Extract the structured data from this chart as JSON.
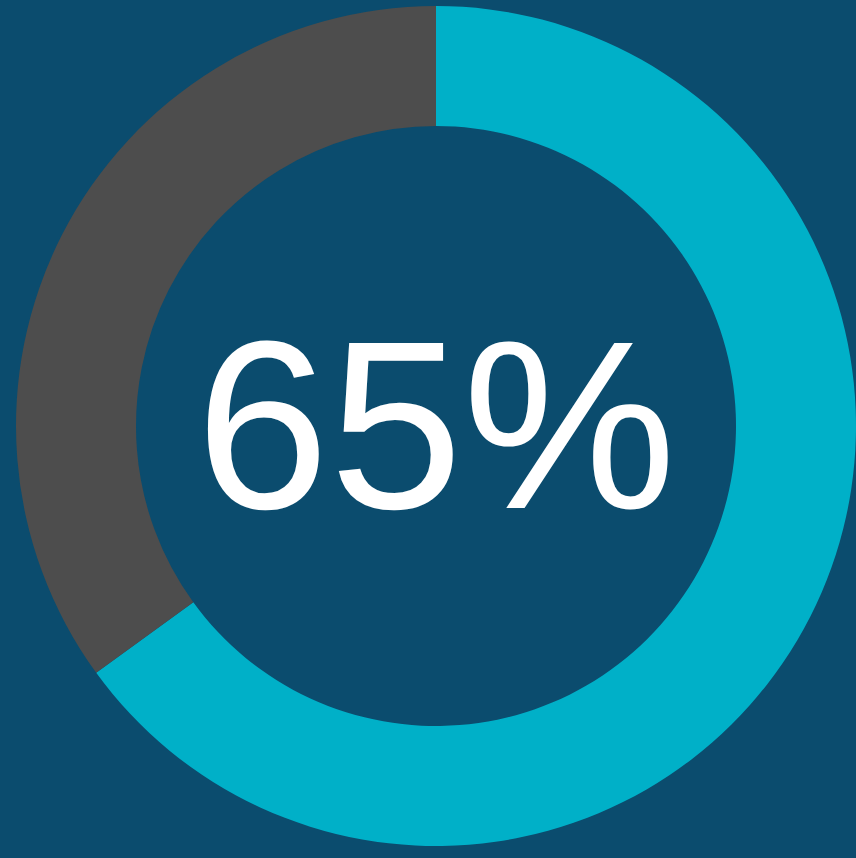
{
  "chart_data": {
    "type": "donut",
    "categories": [
      null,
      null
    ],
    "values": [
      65,
      35
    ],
    "colors": [
      "#00b0c8",
      "#4d4d4d"
    ],
    "annotations": [
      "65%"
    ]
  }
}
